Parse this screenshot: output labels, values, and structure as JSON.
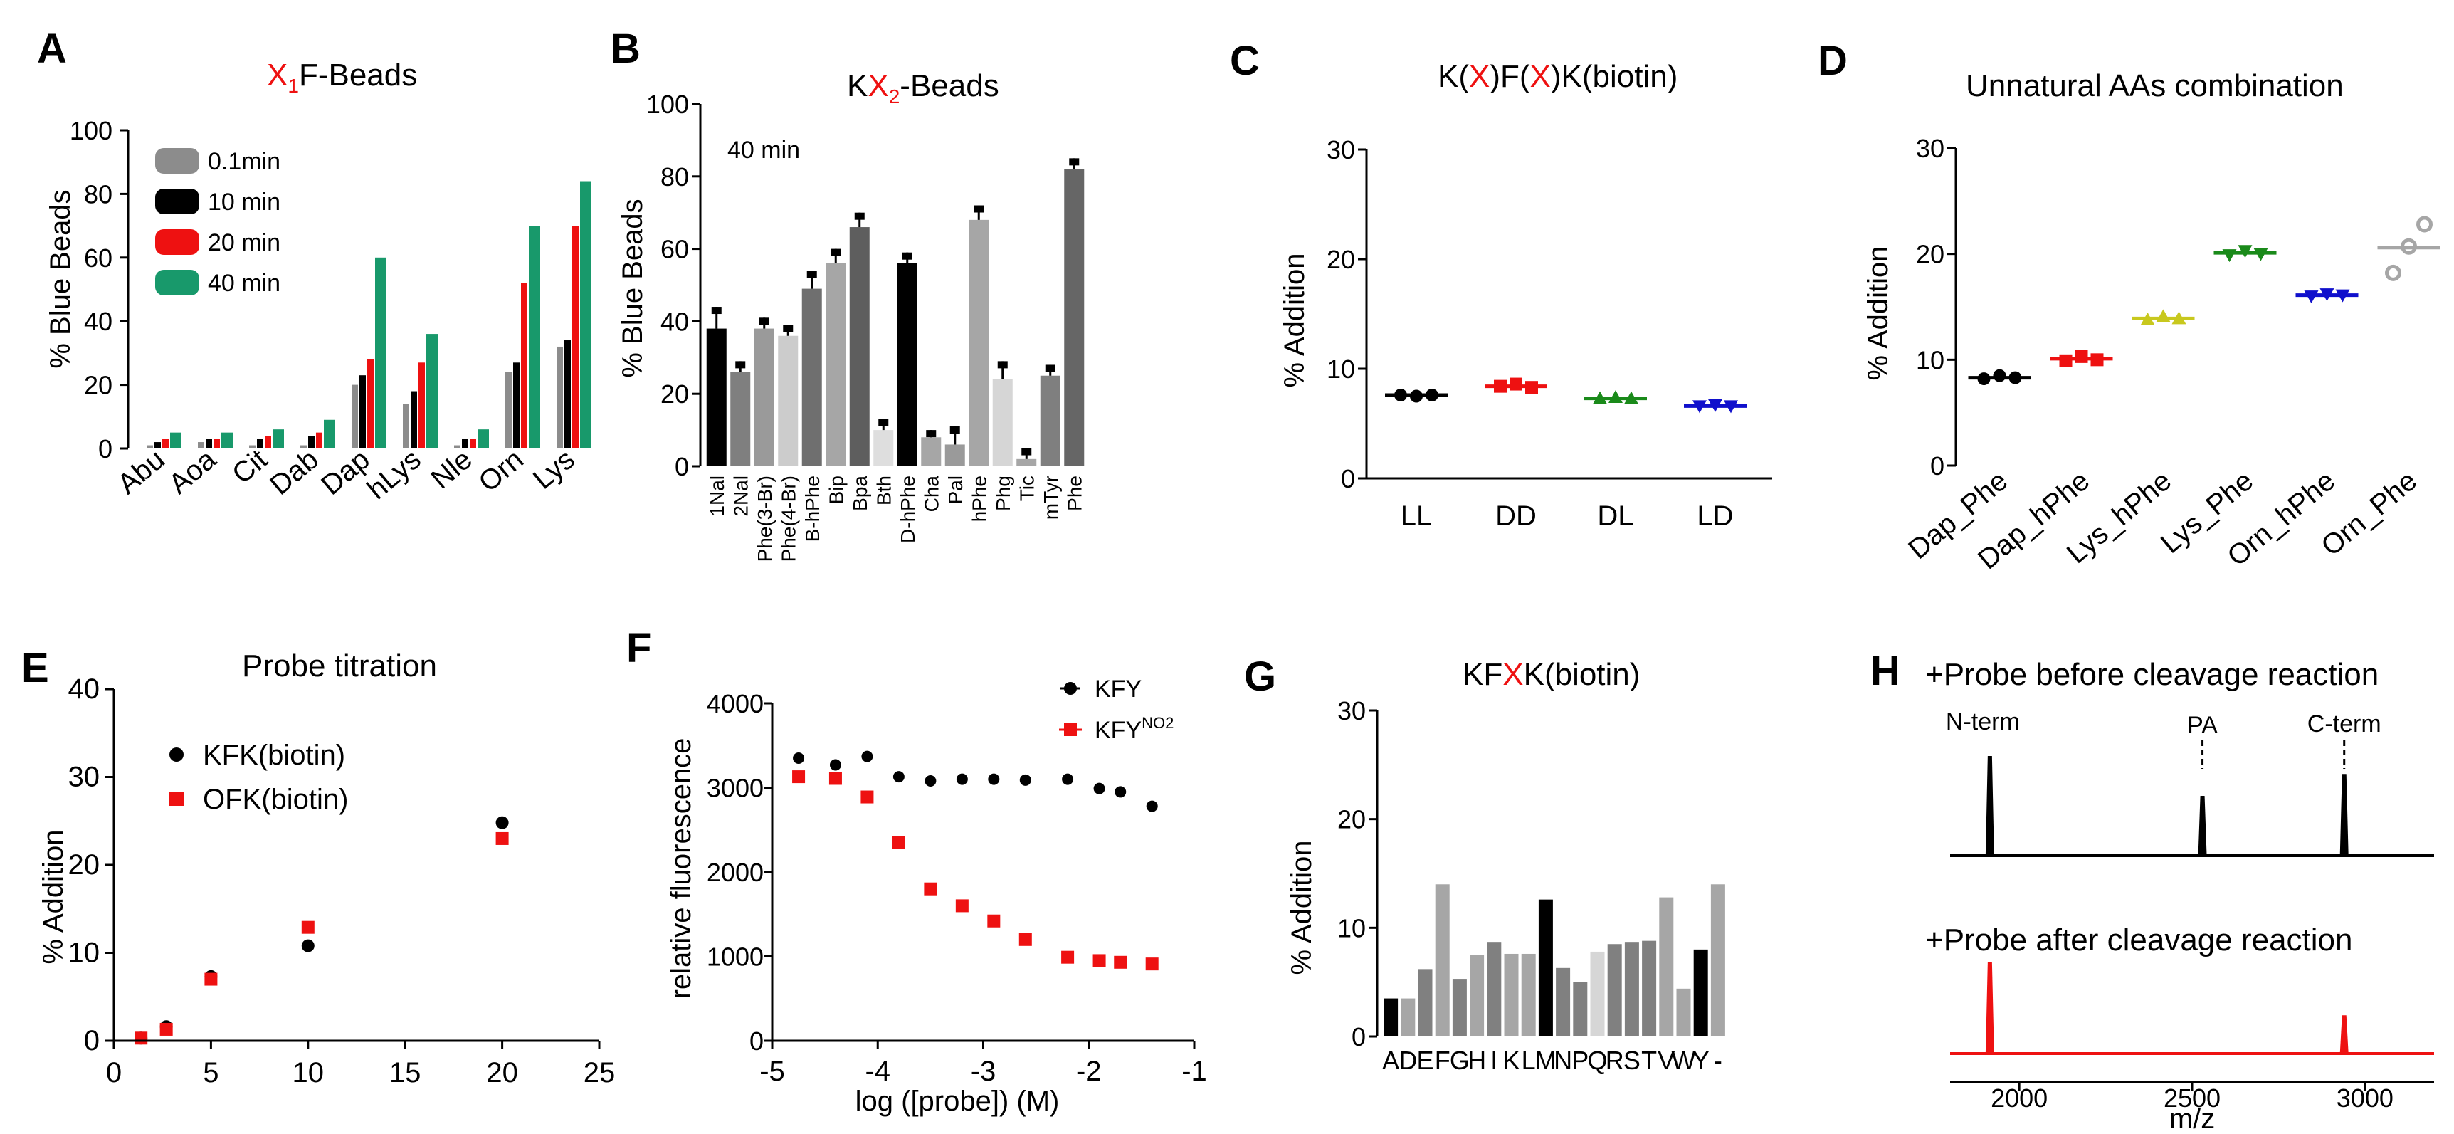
{
  "colors": {
    "black": "#000000",
    "red": "#ee1111",
    "green": "#18996b",
    "gray": "#8c8c8c",
    "dkgreen": "#1a8a1a",
    "blue": "#1010cc",
    "yellow": "#c8c81e",
    "ltgray": "#a6a6a6"
  },
  "chart_data": [
    {
      "panel": "A",
      "type": "bar",
      "title_prefix": "X",
      "title_sub": "1",
      "title_suffix": "F-Beads",
      "ylabel": "% Blue Beads",
      "ylim": [
        0,
        100
      ],
      "yticks": [
        "0",
        "20",
        "40",
        "60",
        "80",
        "100"
      ],
      "categories": [
        "Abu",
        "Aoa",
        "Cit",
        "Dab",
        "Dap",
        "hLys",
        "Nle",
        "Orn",
        "Lys"
      ],
      "series": [
        {
          "name": "0.1min",
          "color": "#8c8c8c",
          "values": [
            1,
            2,
            1,
            1,
            20,
            14,
            1,
            24,
            32
          ]
        },
        {
          "name": "10 min",
          "color": "#000000",
          "values": [
            2,
            3,
            3,
            4,
            23,
            18,
            3,
            27,
            34
          ]
        },
        {
          "name": "20 min",
          "color": "#ee1111",
          "values": [
            3,
            3,
            4,
            5,
            28,
            27,
            3,
            52,
            70
          ]
        },
        {
          "name": "40 min",
          "color": "#18996b",
          "values": [
            5,
            5,
            6,
            9,
            60,
            36,
            6,
            70,
            84
          ]
        }
      ]
    },
    {
      "panel": "B",
      "type": "bar",
      "title_prefix": "K",
      "title_mid": "X",
      "title_sub": "2",
      "title_suffix": "-Beads",
      "annotation": "40 min",
      "ylabel": "% Blue Beads",
      "ylim": [
        0,
        100
      ],
      "yticks": [
        "0",
        "20",
        "40",
        "60",
        "80",
        "100"
      ],
      "categories": [
        "1Nal",
        "2Nal",
        "Phe(3-Br)",
        "Phe(4-Br)",
        "B-hPhe",
        "Bip",
        "Bpa",
        "Bth",
        "D-hPhe",
        "Cha",
        "Pal",
        "hPhe",
        "Phg",
        "Tic",
        "mTyr",
        "Phe"
      ],
      "values": [
        38,
        26,
        38,
        36,
        49,
        56,
        66,
        10,
        56,
        8,
        6,
        68,
        24,
        2,
        25,
        82
      ],
      "errors": [
        6,
        3,
        3,
        3,
        5,
        4,
        4,
        3,
        3,
        2,
        5,
        4,
        5,
        3,
        3,
        3
      ],
      "colors": [
        "#000000",
        "#7f7f7f",
        "#9a9a9a",
        "#cccccc",
        "#6f6f6f",
        "#a6a6a6",
        "#5e5e5e",
        "#dedede",
        "#000000",
        "#a6a6a6",
        "#9a9a9a",
        "#a6a6a6",
        "#d6d6d6",
        "#a6a6a6",
        "#7f7f7f",
        "#666666"
      ]
    },
    {
      "panel": "C",
      "type": "scatter",
      "title_a": "K(",
      "title_x1": "X",
      "title_b": ")F(",
      "title_x2": "X",
      "title_c": ")K(biotin)",
      "ylabel": "% Addition",
      "ylim": [
        0,
        30
      ],
      "yticks": [
        "0",
        "10",
        "20",
        "30"
      ],
      "categories": [
        "LL",
        "DD",
        "DL",
        "LD"
      ],
      "points": [
        [
          7.6,
          7.5,
          7.6
        ],
        [
          8.4,
          8.6,
          8.3
        ],
        [
          7.3,
          7.4,
          7.3
        ],
        [
          6.6,
          6.7,
          6.6
        ]
      ],
      "means": [
        7.6,
        8.4,
        7.3,
        6.6
      ],
      "colors": [
        "#000000",
        "#ee1111",
        "#1a8a1a",
        "#1010cc"
      ]
    },
    {
      "panel": "D",
      "type": "scatter",
      "title": "Unnatural AAs combination",
      "ylabel": "% Addition",
      "ylim": [
        0,
        30
      ],
      "yticks": [
        "0",
        "10",
        "20",
        "30"
      ],
      "categories": [
        "Dap_Phe",
        "Dap_hPhe",
        "Lys_hPhe",
        "Lys_Phe",
        "Orn_hPhe",
        "Orn_Phe"
      ],
      "points": [
        [
          8.2,
          8.5,
          8.3
        ],
        [
          9.9,
          10.3,
          10.0
        ],
        [
          13.8,
          14.1,
          13.9
        ],
        [
          19.9,
          20.3,
          20.0
        ],
        [
          16.0,
          16.2,
          16.1
        ],
        [
          18.2,
          20.7,
          22.8
        ]
      ],
      "means": [
        8.3,
        10.1,
        13.9,
        20.1,
        16.1,
        20.6
      ],
      "colors": [
        "#000000",
        "#ee1111",
        "#c8c81e",
        "#1a8a1a",
        "#1010cc",
        "#a6a6a6"
      ]
    },
    {
      "panel": "E",
      "type": "scatter",
      "title": "Probe titration",
      "ylabel": "% Addition",
      "ylim": [
        0,
        40
      ],
      "xlim": [
        0,
        25
      ],
      "yticks": [
        "0",
        "10",
        "20",
        "30",
        "40"
      ],
      "xticks": [
        "0",
        "5",
        "10",
        "15",
        "20",
        "25"
      ],
      "series": [
        {
          "name": "KFK(biotin)",
          "color": "#000000",
          "marker": "circle",
          "x": [
            1.4,
            2.7,
            5,
            10,
            20
          ],
          "y": [
            0.3,
            1.6,
            7.3,
            10.8,
            24.8
          ]
        },
        {
          "name": "OFK(biotin)",
          "color": "#ee1111",
          "marker": "square",
          "x": [
            1.4,
            2.7,
            5,
            10,
            20
          ],
          "y": [
            0.3,
            1.3,
            7.0,
            12.9,
            23.0
          ]
        }
      ]
    },
    {
      "panel": "F",
      "type": "scatter",
      "xlabel": "log ([probe]) (M)",
      "ylabel": "relative fluorescence",
      "xlim": [
        -5,
        -1
      ],
      "ylim": [
        0,
        4000
      ],
      "xticks": [
        "-5",
        "-4",
        "-3",
        "-2",
        "-1"
      ],
      "yticks": [
        "0",
        "1000",
        "2000",
        "3000",
        "4000"
      ],
      "legend_kfy": "KFY",
      "legend_no2_base": "KFY",
      "legend_no2_sup": "NO2",
      "series": [
        {
          "name": "KFY",
          "color": "#000000",
          "marker": "circle",
          "x": [
            -4.75,
            -4.4,
            -4.1,
            -3.8,
            -3.5,
            -3.2,
            -2.9,
            -2.6,
            -2.2,
            -1.9,
            -1.7,
            -1.4
          ],
          "y": [
            3350,
            3270,
            3370,
            3130,
            3080,
            3100,
            3100,
            3090,
            3100,
            2990,
            2950,
            2780
          ]
        },
        {
          "name": "KFY^NO2",
          "color": "#ee1111",
          "marker": "square",
          "x": [
            -4.75,
            -4.4,
            -4.1,
            -3.8,
            -3.5,
            -3.2,
            -2.9,
            -2.6,
            -2.2,
            -1.9,
            -1.7,
            -1.4
          ],
          "y": [
            3130,
            3110,
            2890,
            2350,
            1800,
            1600,
            1420,
            1200,
            990,
            950,
            930,
            910
          ]
        }
      ]
    },
    {
      "panel": "G",
      "type": "bar",
      "title_a": "KF",
      "title_x": "X",
      "title_b": "K(biotin)",
      "ylabel": "% Addition",
      "ylim": [
        0,
        30
      ],
      "yticks": [
        "0",
        "10",
        "20",
        "30"
      ],
      "categories": [
        "A",
        "D",
        "E",
        "F",
        "G",
        "H",
        "I",
        "K",
        "L",
        "M",
        "N",
        "P",
        "Q",
        "R",
        "S",
        "T",
        "V",
        "W",
        "Y",
        "-"
      ],
      "values": [
        3.5,
        3.5,
        6.2,
        14.0,
        5.3,
        7.5,
        8.7,
        7.6,
        7.6,
        12.6,
        6.3,
        5.0,
        7.8,
        8.5,
        8.7,
        8.8,
        12.8,
        4.4,
        8.0,
        14.0
      ],
      "colors": [
        "#000000",
        "#a6a6a6",
        "#808080",
        "#a6a6a6",
        "#808080",
        "#a6a6a6",
        "#808080",
        "#a6a6a6",
        "#a6a6a6",
        "#000000",
        "#808080",
        "#808080",
        "#d6d6d6",
        "#808080",
        "#808080",
        "#808080",
        "#a6a6a6",
        "#a6a6a6",
        "#000000",
        "#a6a6a6"
      ]
    },
    {
      "panel": "H",
      "type": "line",
      "title_top": "+Probe before cleavage reaction",
      "title_bottom": "+Probe after cleavage reaction",
      "xlabel": "m/z",
      "xlim": [
        1800,
        3200
      ],
      "xticks": [
        "2000",
        "2500",
        "3000"
      ],
      "peak_labels": [
        "N-term",
        "PA",
        "C-term"
      ],
      "before_peaks": [
        {
          "x": 1915,
          "h": 1.0
        },
        {
          "x": 2530,
          "h": 0.6
        },
        {
          "x": 2940,
          "h": 0.82
        }
      ],
      "after_peaks": [
        {
          "x": 1915,
          "h": 1.0
        },
        {
          "x": 2940,
          "h": 0.42
        }
      ]
    }
  ]
}
